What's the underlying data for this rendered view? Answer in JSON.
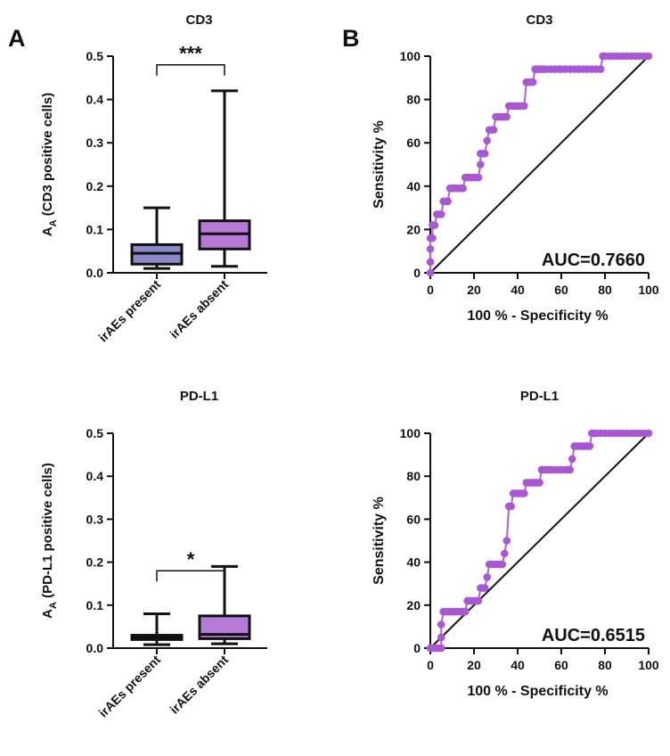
{
  "panel_labels": {
    "a": "A",
    "b": "B"
  },
  "colors": {
    "axis": "#111111",
    "box_present": "#8a88c6",
    "box_absent": "#b57bd6",
    "roc_curve": "#b25fd6",
    "roc_point": "#a957d2"
  },
  "chart_data": [
    {
      "type": "box",
      "title": "CD3",
      "ylabel_main": "A",
      "ylabel_sub": "A",
      "ylabel_rest": " (CD3 positive cells)",
      "ylim": [
        0,
        0.5
      ],
      "yticks": [
        "0.0",
        "0.1",
        "0.2",
        "0.3",
        "0.4",
        "0.5"
      ],
      "categories": [
        "irAEs present",
        "irAEs absent"
      ],
      "boxes": [
        {
          "name": "irAEs present",
          "min": 0.01,
          "q1": 0.02,
          "median": 0.045,
          "q3": 0.065,
          "max": 0.15
        },
        {
          "name": "irAEs absent",
          "min": 0.015,
          "q1": 0.055,
          "median": 0.09,
          "q3": 0.12,
          "max": 0.42
        }
      ],
      "significance": {
        "label": "***",
        "height": 0.48
      }
    },
    {
      "type": "box",
      "title": "PD-L1",
      "ylabel_main": "A",
      "ylabel_sub": "A",
      "ylabel_rest": " (PD-L1 positive cells)",
      "ylim": [
        0,
        0.5
      ],
      "yticks": [
        "0.0",
        "0.1",
        "0.2",
        "0.3",
        "0.4",
        "0.5"
      ],
      "categories": [
        "irAEs present",
        "irAEs absent"
      ],
      "boxes": [
        {
          "name": "irAEs present",
          "min": 0.008,
          "q1": 0.02,
          "median": 0.026,
          "q3": 0.03,
          "max": 0.08
        },
        {
          "name": "irAEs absent",
          "min": 0.01,
          "q1": 0.022,
          "median": 0.032,
          "q3": 0.075,
          "max": 0.19
        }
      ],
      "significance": {
        "label": "*",
        "height": 0.18
      }
    },
    {
      "type": "line",
      "title": "CD3",
      "xlabel": "100 % - Specificity %",
      "ylabel": "Sensitivity %",
      "xlim": [
        0,
        100
      ],
      "ylim": [
        0,
        100
      ],
      "xticks": [
        "0",
        "20",
        "40",
        "60",
        "80",
        "100"
      ],
      "yticks": [
        "0",
        "20",
        "40",
        "60",
        "80",
        "100"
      ],
      "annotation": "AUC=0.7660",
      "reference_line": [
        [
          0,
          0
        ],
        [
          100,
          100
        ]
      ],
      "roc": [
        [
          0,
          0
        ],
        [
          0,
          5
        ],
        [
          0,
          11
        ],
        [
          0,
          16
        ],
        [
          1,
          16
        ],
        [
          1,
          22
        ],
        [
          2,
          22
        ],
        [
          3,
          27
        ],
        [
          4,
          27
        ],
        [
          5,
          27
        ],
        [
          6,
          33
        ],
        [
          7,
          33
        ],
        [
          8,
          33
        ],
        [
          9,
          39
        ],
        [
          10,
          39
        ],
        [
          11,
          39
        ],
        [
          12,
          39
        ],
        [
          13,
          39
        ],
        [
          14,
          39
        ],
        [
          15,
          39
        ],
        [
          16,
          44
        ],
        [
          17,
          44
        ],
        [
          18,
          44
        ],
        [
          19,
          44
        ],
        [
          20,
          44
        ],
        [
          21,
          44
        ],
        [
          22,
          44
        ],
        [
          23,
          50
        ],
        [
          23,
          55
        ],
        [
          24,
          55
        ],
        [
          25,
          55
        ],
        [
          26,
          61
        ],
        [
          27,
          66
        ],
        [
          28,
          66
        ],
        [
          29,
          66
        ],
        [
          30,
          72
        ],
        [
          31,
          72
        ],
        [
          32,
          72
        ],
        [
          33,
          72
        ],
        [
          34,
          72
        ],
        [
          35,
          72
        ],
        [
          36,
          77
        ],
        [
          37,
          77
        ],
        [
          38,
          77
        ],
        [
          39,
          77
        ],
        [
          40,
          77
        ],
        [
          41,
          77
        ],
        [
          42,
          77
        ],
        [
          43,
          77
        ],
        [
          44,
          88
        ],
        [
          45,
          88
        ],
        [
          46,
          88
        ],
        [
          47,
          88
        ],
        [
          48,
          94
        ],
        [
          49,
          94
        ],
        [
          50,
          94
        ],
        [
          51,
          94
        ],
        [
          52,
          94
        ],
        [
          53,
          94
        ],
        [
          55,
          94
        ],
        [
          57,
          94
        ],
        [
          59,
          94
        ],
        [
          60,
          94
        ],
        [
          62,
          94
        ],
        [
          64,
          94
        ],
        [
          66,
          94
        ],
        [
          68,
          94
        ],
        [
          70,
          94
        ],
        [
          72,
          94
        ],
        [
          74,
          94
        ],
        [
          76,
          94
        ],
        [
          78,
          94
        ],
        [
          79,
          100
        ],
        [
          80,
          100
        ],
        [
          82,
          100
        ],
        [
          84,
          100
        ],
        [
          86,
          100
        ],
        [
          88,
          100
        ],
        [
          90,
          100
        ],
        [
          92,
          100
        ],
        [
          94,
          100
        ],
        [
          96,
          100
        ],
        [
          98,
          100
        ],
        [
          100,
          100
        ]
      ]
    },
    {
      "type": "line",
      "title": "PD-L1",
      "xlabel": "100 % - Specificity %",
      "ylabel": "Sensitivity %",
      "xlim": [
        0,
        100
      ],
      "ylim": [
        0,
        100
      ],
      "xticks": [
        "0",
        "20",
        "40",
        "60",
        "80",
        "100"
      ],
      "yticks": [
        "0",
        "20",
        "40",
        "60",
        "80",
        "100"
      ],
      "annotation": "AUC=0.6515",
      "reference_line": [
        [
          0,
          0
        ],
        [
          100,
          100
        ]
      ],
      "roc": [
        [
          0,
          0
        ],
        [
          1,
          0
        ],
        [
          2,
          0
        ],
        [
          3,
          0
        ],
        [
          4,
          0
        ],
        [
          5,
          0
        ],
        [
          5,
          5
        ],
        [
          5,
          11
        ],
        [
          6,
          17
        ],
        [
          7,
          17
        ],
        [
          8,
          17
        ],
        [
          9,
          17
        ],
        [
          10,
          17
        ],
        [
          11,
          17
        ],
        [
          12,
          17
        ],
        [
          13,
          17
        ],
        [
          14,
          17
        ],
        [
          15,
          17
        ],
        [
          16,
          17
        ],
        [
          17,
          22
        ],
        [
          18,
          22
        ],
        [
          19,
          22
        ],
        [
          20,
          22
        ],
        [
          21,
          22
        ],
        [
          22,
          22
        ],
        [
          23,
          28
        ],
        [
          24,
          28
        ],
        [
          25,
          28
        ],
        [
          26,
          33
        ],
        [
          27,
          39
        ],
        [
          28,
          39
        ],
        [
          29,
          39
        ],
        [
          30,
          39
        ],
        [
          31,
          39
        ],
        [
          32,
          39
        ],
        [
          33,
          39
        ],
        [
          34,
          44
        ],
        [
          35,
          50
        ],
        [
          36,
          66
        ],
        [
          37,
          66
        ],
        [
          38,
          72
        ],
        [
          39,
          72
        ],
        [
          40,
          72
        ],
        [
          41,
          72
        ],
        [
          42,
          72
        ],
        [
          43,
          72
        ],
        [
          44,
          77
        ],
        [
          45,
          77
        ],
        [
          46,
          77
        ],
        [
          47,
          77
        ],
        [
          48,
          77
        ],
        [
          49,
          77
        ],
        [
          50,
          77
        ],
        [
          51,
          83
        ],
        [
          52,
          83
        ],
        [
          53,
          83
        ],
        [
          54,
          83
        ],
        [
          55,
          83
        ],
        [
          56,
          83
        ],
        [
          58,
          83
        ],
        [
          60,
          83
        ],
        [
          62,
          83
        ],
        [
          63,
          83
        ],
        [
          64,
          83
        ],
        [
          65,
          88
        ],
        [
          66,
          94
        ],
        [
          67,
          94
        ],
        [
          68,
          94
        ],
        [
          69,
          94
        ],
        [
          70,
          94
        ],
        [
          71,
          94
        ],
        [
          72,
          94
        ],
        [
          73,
          94
        ],
        [
          74,
          100
        ],
        [
          75,
          100
        ],
        [
          76,
          100
        ],
        [
          78,
          100
        ],
        [
          80,
          100
        ],
        [
          82,
          100
        ],
        [
          84,
          100
        ],
        [
          86,
          100
        ],
        [
          88,
          100
        ],
        [
          90,
          100
        ],
        [
          92,
          100
        ],
        [
          94,
          100
        ],
        [
          96,
          100
        ],
        [
          98,
          100
        ],
        [
          100,
          100
        ]
      ]
    }
  ]
}
